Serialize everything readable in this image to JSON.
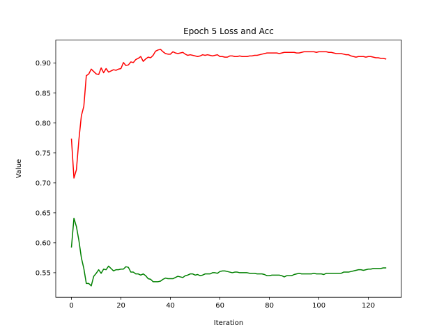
{
  "chart_data": {
    "type": "line",
    "title": "Epoch 5 Loss and Acc",
    "xlabel": "Iteration",
    "ylabel": "Value",
    "xlim": [
      -6.35,
      133.35
    ],
    "ylim": [
      0.509,
      0.9385
    ],
    "xticks": [
      0,
      20,
      40,
      60,
      80,
      100,
      120
    ],
    "yticks": [
      0.55,
      0.6,
      0.65,
      0.7,
      0.75,
      0.8,
      0.85,
      0.9
    ],
    "grid": false,
    "series": [
      {
        "color": "#ff0000",
        "x": [
          0,
          1,
          2,
          3,
          4,
          5,
          6,
          7,
          8,
          9,
          10,
          11,
          12,
          13,
          14,
          15,
          16,
          17,
          18,
          19,
          20,
          21,
          22,
          23,
          24,
          25,
          26,
          27,
          28,
          29,
          30,
          31,
          32,
          33,
          34,
          35,
          36,
          37,
          38,
          39,
          40,
          41,
          42,
          43,
          44,
          45,
          46,
          47,
          48,
          49,
          50,
          51,
          52,
          53,
          54,
          55,
          56,
          57,
          58,
          59,
          60,
          61,
          62,
          63,
          64,
          65,
          66,
          67,
          68,
          69,
          70,
          71,
          72,
          73,
          74,
          75,
          76,
          77,
          78,
          79,
          80,
          81,
          82,
          83,
          84,
          85,
          86,
          87,
          88,
          89,
          90,
          91,
          92,
          93,
          94,
          95,
          96,
          97,
          98,
          99,
          100,
          101,
          102,
          103,
          104,
          105,
          106,
          107,
          108,
          109,
          110,
          111,
          112,
          113,
          114,
          115,
          116,
          117,
          118,
          119,
          120,
          121,
          122,
          123,
          124,
          125,
          126,
          127
        ],
        "values": [
          0.773,
          0.708,
          0.722,
          0.772,
          0.812,
          0.828,
          0.879,
          0.882,
          0.89,
          0.886,
          0.882,
          0.881,
          0.892,
          0.884,
          0.891,
          0.885,
          0.887,
          0.889,
          0.888,
          0.89,
          0.891,
          0.901,
          0.896,
          0.897,
          0.902,
          0.901,
          0.906,
          0.908,
          0.911,
          0.903,
          0.907,
          0.91,
          0.909,
          0.913,
          0.92,
          0.922,
          0.923,
          0.919,
          0.916,
          0.915,
          0.915,
          0.919,
          0.917,
          0.916,
          0.917,
          0.918,
          0.915,
          0.913,
          0.914,
          0.913,
          0.912,
          0.911,
          0.912,
          0.914,
          0.913,
          0.914,
          0.913,
          0.912,
          0.913,
          0.914,
          0.911,
          0.911,
          0.91,
          0.91,
          0.912,
          0.912,
          0.911,
          0.911,
          0.912,
          0.911,
          0.911,
          0.911,
          0.912,
          0.912,
          0.913,
          0.913,
          0.914,
          0.915,
          0.916,
          0.917,
          0.917,
          0.917,
          0.917,
          0.917,
          0.916,
          0.917,
          0.918,
          0.918,
          0.918,
          0.918,
          0.918,
          0.917,
          0.917,
          0.918,
          0.919,
          0.919,
          0.919,
          0.919,
          0.919,
          0.918,
          0.919,
          0.919,
          0.919,
          0.919,
          0.918,
          0.918,
          0.917,
          0.916,
          0.916,
          0.916,
          0.915,
          0.914,
          0.914,
          0.912,
          0.911,
          0.91,
          0.911,
          0.911,
          0.911,
          0.91,
          0.911,
          0.911,
          0.91,
          0.909,
          0.909,
          0.908,
          0.908,
          0.907
        ]
      },
      {
        "color": "#008000",
        "x": [
          0,
          1,
          2,
          3,
          4,
          5,
          6,
          7,
          8,
          9,
          10,
          11,
          12,
          13,
          14,
          15,
          16,
          17,
          18,
          19,
          20,
          21,
          22,
          23,
          24,
          25,
          26,
          27,
          28,
          29,
          30,
          31,
          32,
          33,
          34,
          35,
          36,
          37,
          38,
          39,
          40,
          41,
          42,
          43,
          44,
          45,
          46,
          47,
          48,
          49,
          50,
          51,
          52,
          53,
          54,
          55,
          56,
          57,
          58,
          59,
          60,
          61,
          62,
          63,
          64,
          65,
          66,
          67,
          68,
          69,
          70,
          71,
          72,
          73,
          74,
          75,
          76,
          77,
          78,
          79,
          80,
          81,
          82,
          83,
          84,
          85,
          86,
          87,
          88,
          89,
          90,
          91,
          92,
          93,
          94,
          95,
          96,
          97,
          98,
          99,
          100,
          101,
          102,
          103,
          104,
          105,
          106,
          107,
          108,
          109,
          110,
          111,
          112,
          113,
          114,
          115,
          116,
          117,
          118,
          119,
          120,
          121,
          122,
          123,
          124,
          125,
          126,
          127
        ],
        "values": [
          0.593,
          0.641,
          0.627,
          0.604,
          0.575,
          0.557,
          0.532,
          0.532,
          0.528,
          0.544,
          0.549,
          0.555,
          0.549,
          0.556,
          0.555,
          0.561,
          0.557,
          0.553,
          0.555,
          0.555,
          0.556,
          0.556,
          0.56,
          0.559,
          0.551,
          0.551,
          0.548,
          0.548,
          0.546,
          0.548,
          0.545,
          0.54,
          0.539,
          0.535,
          0.535,
          0.535,
          0.536,
          0.539,
          0.541,
          0.54,
          0.54,
          0.54,
          0.542,
          0.544,
          0.543,
          0.542,
          0.545,
          0.546,
          0.548,
          0.548,
          0.546,
          0.547,
          0.545,
          0.546,
          0.548,
          0.548,
          0.548,
          0.55,
          0.55,
          0.549,
          0.552,
          0.553,
          0.553,
          0.552,
          0.551,
          0.55,
          0.551,
          0.551,
          0.55,
          0.55,
          0.55,
          0.55,
          0.549,
          0.549,
          0.549,
          0.548,
          0.548,
          0.548,
          0.547,
          0.545,
          0.545,
          0.546,
          0.546,
          0.546,
          0.546,
          0.545,
          0.543,
          0.545,
          0.545,
          0.545,
          0.547,
          0.548,
          0.549,
          0.548,
          0.548,
          0.548,
          0.548,
          0.548,
          0.549,
          0.548,
          0.548,
          0.548,
          0.547,
          0.549,
          0.549,
          0.549,
          0.549,
          0.549,
          0.549,
          0.549,
          0.551,
          0.551,
          0.551,
          0.552,
          0.553,
          0.554,
          0.555,
          0.555,
          0.554,
          0.555,
          0.556,
          0.556,
          0.557,
          0.557,
          0.557,
          0.557,
          0.558,
          0.558
        ]
      }
    ]
  }
}
